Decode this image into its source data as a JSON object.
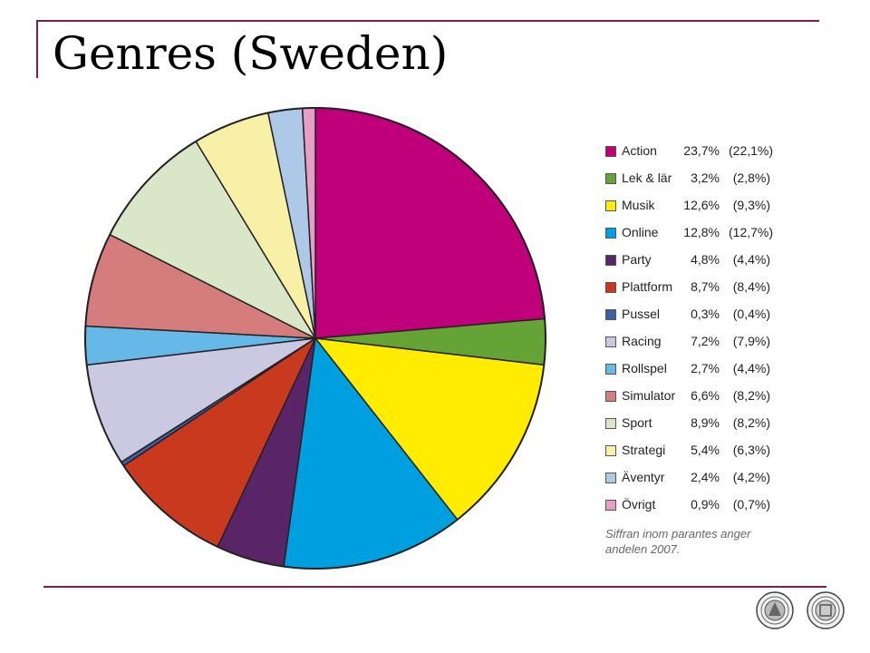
{
  "title": "Genres (Sweden)",
  "chart_data": {
    "type": "pie",
    "title": "",
    "start_angle_deg": 0,
    "direction": "clockwise",
    "slices": [
      {
        "label": "Action",
        "value": 23.7,
        "display": "23,7%",
        "previous": "(22,1%)",
        "color": "#c0007a"
      },
      {
        "label": "Lek & lär",
        "value": 3.2,
        "display": "3,2%",
        "previous": "(2,8%)",
        "color": "#66a336"
      },
      {
        "label": "Musik",
        "value": 12.6,
        "display": "12,6%",
        "previous": "(9,3%)",
        "color": "#ffec00"
      },
      {
        "label": "Online",
        "value": 12.8,
        "display": "12,8%",
        "previous": "(12,7%)",
        "color": "#009fdf"
      },
      {
        "label": "Party",
        "value": 4.8,
        "display": "4,8%",
        "previous": "(4,4%)",
        "color": "#5a2566"
      },
      {
        "label": "Plattform",
        "value": 8.7,
        "display": "8,7%",
        "previous": "(8,4%)",
        "color": "#c8391e"
      },
      {
        "label": "Pussel",
        "value": 0.3,
        "display": "0,3%",
        "previous": "(0,4%)",
        "color": "#3e5ea8"
      },
      {
        "label": "Racing",
        "value": 7.2,
        "display": "7,2%",
        "previous": "(7,9%)",
        "color": "#cbc9e2"
      },
      {
        "label": "Rollspel",
        "value": 2.7,
        "display": "2,7%",
        "previous": "(4,4%)",
        "color": "#65b8e8"
      },
      {
        "label": "Simulator",
        "value": 6.6,
        "display": "6,6%",
        "previous": "(8,2%)",
        "color": "#d57c7c"
      },
      {
        "label": "Sport",
        "value": 8.9,
        "display": "8,9%",
        "previous": "(8,2%)",
        "color": "#d9e6c8"
      },
      {
        "label": "Strategi",
        "value": 5.4,
        "display": "5,4%",
        "previous": "(6,3%)",
        "color": "#f7f0a6"
      },
      {
        "label": "Äventyr",
        "value": 2.4,
        "display": "2,4%",
        "previous": "(4,2%)",
        "color": "#aec8e8"
      },
      {
        "label": "Övrigt",
        "value": 0.9,
        "display": "0,9%",
        "previous": "(0,7%)",
        "color": "#e6a0c6"
      }
    ],
    "legend_position": "right",
    "note": "Siffran inom parantes anger andelen 2007."
  },
  "logos": [
    "university-seal-left",
    "university-seal-right"
  ]
}
